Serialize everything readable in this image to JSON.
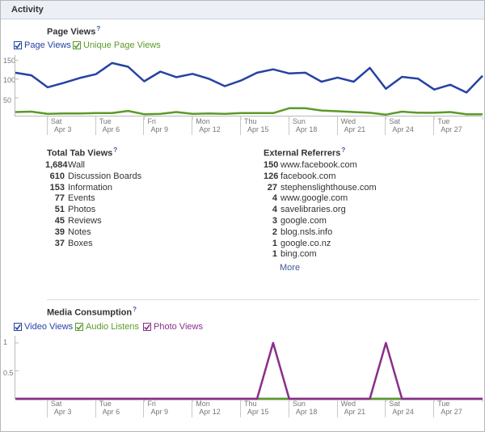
{
  "header": {
    "title": "Activity"
  },
  "page_views": {
    "title": "Page Views",
    "help": "?",
    "legend": [
      {
        "label": "Page Views",
        "color": "#2642a3",
        "checked": true
      },
      {
        "label": "Unique Page Views",
        "color": "#5b9a28",
        "checked": true
      }
    ],
    "y_ticks": [
      "150",
      "100",
      "50"
    ],
    "x_ticks": [
      {
        "day": "Sat",
        "date": "Apr 3"
      },
      {
        "day": "Tue",
        "date": "Apr 6"
      },
      {
        "day": "Fri",
        "date": "Apr 9"
      },
      {
        "day": "Mon",
        "date": "Apr 12"
      },
      {
        "day": "Thu",
        "date": "Apr 15"
      },
      {
        "day": "Sun",
        "date": "Apr 18"
      },
      {
        "day": "Wed",
        "date": "Apr 21"
      },
      {
        "day": "Sat",
        "date": "Apr 24"
      },
      {
        "day": "Tue",
        "date": "Apr 27"
      }
    ]
  },
  "tab_views": {
    "title": "Total Tab Views",
    "help": "?",
    "rows": [
      {
        "n": "1,684",
        "label": "Wall"
      },
      {
        "n": "610",
        "label": "Discussion Boards"
      },
      {
        "n": "153",
        "label": "Information"
      },
      {
        "n": "77",
        "label": "Events"
      },
      {
        "n": "51",
        "label": "Photos"
      },
      {
        "n": "45",
        "label": "Reviews"
      },
      {
        "n": "39",
        "label": "Notes"
      },
      {
        "n": "37",
        "label": "Boxes"
      }
    ]
  },
  "referrers": {
    "title": "External Referrers",
    "help": "?",
    "rows": [
      {
        "n": "150",
        "label": "www.facebook.com"
      },
      {
        "n": "126",
        "label": "facebook.com"
      },
      {
        "n": "27",
        "label": "stephenslighthouse.com"
      },
      {
        "n": "4",
        "label": "www.google.com"
      },
      {
        "n": "4",
        "label": "savelibraries.org"
      },
      {
        "n": "3",
        "label": "google.com"
      },
      {
        "n": "2",
        "label": "blog.nsls.info"
      },
      {
        "n": "1",
        "label": "google.co.nz"
      },
      {
        "n": "1",
        "label": "bing.com"
      }
    ],
    "more": "More"
  },
  "media": {
    "title": "Media Consumption",
    "help": "?",
    "legend": [
      {
        "label": "Video Views",
        "color": "#2642a3",
        "checked": true
      },
      {
        "label": "Audio Listens",
        "color": "#5b9a28",
        "checked": true
      },
      {
        "label": "Photo Views",
        "color": "#8b2d8b",
        "checked": true
      }
    ],
    "y_ticks": [
      "1",
      "0.5"
    ],
    "x_ticks": [
      {
        "day": "Sat",
        "date": "Apr 3"
      },
      {
        "day": "Tue",
        "date": "Apr 6"
      },
      {
        "day": "Fri",
        "date": "Apr 9"
      },
      {
        "day": "Mon",
        "date": "Apr 12"
      },
      {
        "day": "Thu",
        "date": "Apr 15"
      },
      {
        "day": "Sun",
        "date": "Apr 18"
      },
      {
        "day": "Wed",
        "date": "Apr 21"
      },
      {
        "day": "Sat",
        "date": "Apr 24"
      },
      {
        "day": "Tue",
        "date": "Apr 27"
      }
    ]
  },
  "chart_data": [
    {
      "type": "line",
      "title": "Page Views",
      "x": [
        "Apr 1",
        "Apr 2",
        "Apr 3",
        "Apr 4",
        "Apr 5",
        "Apr 6",
        "Apr 7",
        "Apr 8",
        "Apr 9",
        "Apr 10",
        "Apr 11",
        "Apr 12",
        "Apr 13",
        "Apr 14",
        "Apr 15",
        "Apr 16",
        "Apr 17",
        "Apr 18",
        "Apr 19",
        "Apr 20",
        "Apr 21",
        "Apr 22",
        "Apr 23",
        "Apr 24",
        "Apr 25",
        "Apr 26",
        "Apr 27",
        "Apr 28",
        "Apr 29",
        "Apr 30"
      ],
      "series": [
        {
          "name": "Page Views",
          "color": "#2642a3",
          "values": [
            117,
            110,
            78,
            90,
            103,
            113,
            143,
            133,
            94,
            120,
            105,
            114,
            101,
            81,
            96,
            117,
            126,
            115,
            117,
            93,
            104,
            93,
            130,
            74,
            106,
            101,
            72,
            85,
            64,
            109
          ]
        },
        {
          "name": "Unique Page Views",
          "color": "#5b9a28",
          "values": [
            12,
            13,
            7,
            8,
            8,
            9,
            9,
            15,
            6,
            7,
            12,
            7,
            8,
            7,
            9,
            9,
            9,
            22,
            22,
            16,
            14,
            12,
            10,
            5,
            13,
            10,
            10,
            12,
            6,
            6
          ]
        }
      ],
      "y_ticks": [
        150,
        100,
        50
      ],
      "ylim": [
        0,
        160
      ]
    },
    {
      "type": "line",
      "title": "Media Consumption",
      "x": [
        "Apr 1",
        "Apr 2",
        "Apr 3",
        "Apr 4",
        "Apr 5",
        "Apr 6",
        "Apr 7",
        "Apr 8",
        "Apr 9",
        "Apr 10",
        "Apr 11",
        "Apr 12",
        "Apr 13",
        "Apr 14",
        "Apr 15",
        "Apr 16",
        "Apr 17",
        "Apr 18",
        "Apr 19",
        "Apr 20",
        "Apr 21",
        "Apr 22",
        "Apr 23",
        "Apr 24",
        "Apr 25",
        "Apr 26",
        "Apr 27",
        "Apr 28",
        "Apr 29",
        "Apr 30"
      ],
      "series": [
        {
          "name": "Video Views",
          "color": "#2642a3",
          "values": [
            0,
            0,
            0,
            0,
            0,
            0,
            0,
            0,
            0,
            0,
            0,
            0,
            0,
            0,
            0,
            0,
            0,
            0,
            0,
            0,
            0,
            0,
            0,
            0,
            0,
            0,
            0,
            0,
            0,
            0
          ]
        },
        {
          "name": "Audio Listens",
          "color": "#5b9a28",
          "values": [
            0,
            0,
            0,
            0,
            0,
            0,
            0,
            0,
            0,
            0,
            0,
            0,
            0,
            0,
            0,
            0,
            0,
            0,
            0,
            0,
            0,
            0,
            0,
            0,
            0,
            0,
            0,
            0,
            0,
            0
          ]
        },
        {
          "name": "Photo Views",
          "color": "#8b2d8b",
          "values": [
            0,
            0,
            0,
            0,
            0,
            0,
            0,
            0,
            0,
            0,
            0,
            0,
            0,
            0,
            0,
            0,
            1,
            0,
            0,
            0,
            0,
            0,
            0,
            1,
            0,
            0,
            0,
            0,
            0,
            0
          ]
        }
      ],
      "y_ticks": [
        1,
        0.5
      ],
      "ylim": [
        0,
        1.1
      ]
    }
  ]
}
